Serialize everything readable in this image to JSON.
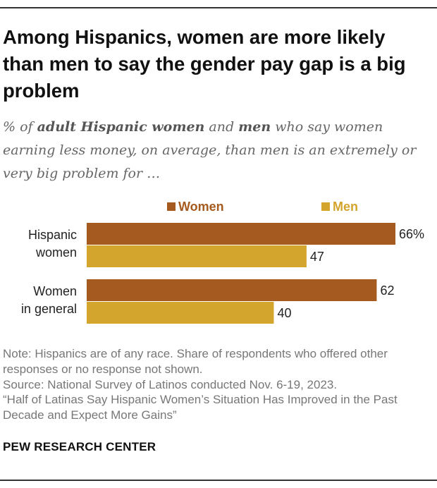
{
  "title": "Among Hispanics, women are more likely than men to say the gender pay gap is a big problem",
  "subtitle": {
    "part1": "% of ",
    "bold1": "adult Hispanic women",
    "part2": " and ",
    "bold2": "men",
    "part3": " who say women earning less money, on average, than men is an extremely or very big problem for …"
  },
  "colors": {
    "women": "#a55a1f",
    "men": "#d4a52c",
    "label": "#222222"
  },
  "chart_data": {
    "type": "bar",
    "orientation": "horizontal",
    "title": "",
    "xlabel": "",
    "ylabel": "",
    "xlim": [
      0,
      66
    ],
    "legend": {
      "position": "top",
      "entries": [
        "Women",
        "Men"
      ]
    },
    "categories": [
      [
        "Hispanic",
        "women"
      ],
      [
        "Women",
        "in general"
      ]
    ],
    "series": [
      {
        "name": "Women",
        "values": [
          66,
          62
        ],
        "labels": [
          "66%",
          "62"
        ]
      },
      {
        "name": "Men",
        "values": [
          47,
          40
        ],
        "labels": [
          "47",
          "40"
        ]
      }
    ]
  },
  "notes": [
    "Note: Hispanics are of any race. Share of respondents who offered other responses or no response not shown.",
    "Source: National Survey of Latinos conducted Nov. 6-19, 2023.",
    "“Half of Latinas Say Hispanic Women’s Situation Has Improved in the Past Decade and Expect More Gains”"
  ],
  "brand": "PEW RESEARCH CENTER"
}
